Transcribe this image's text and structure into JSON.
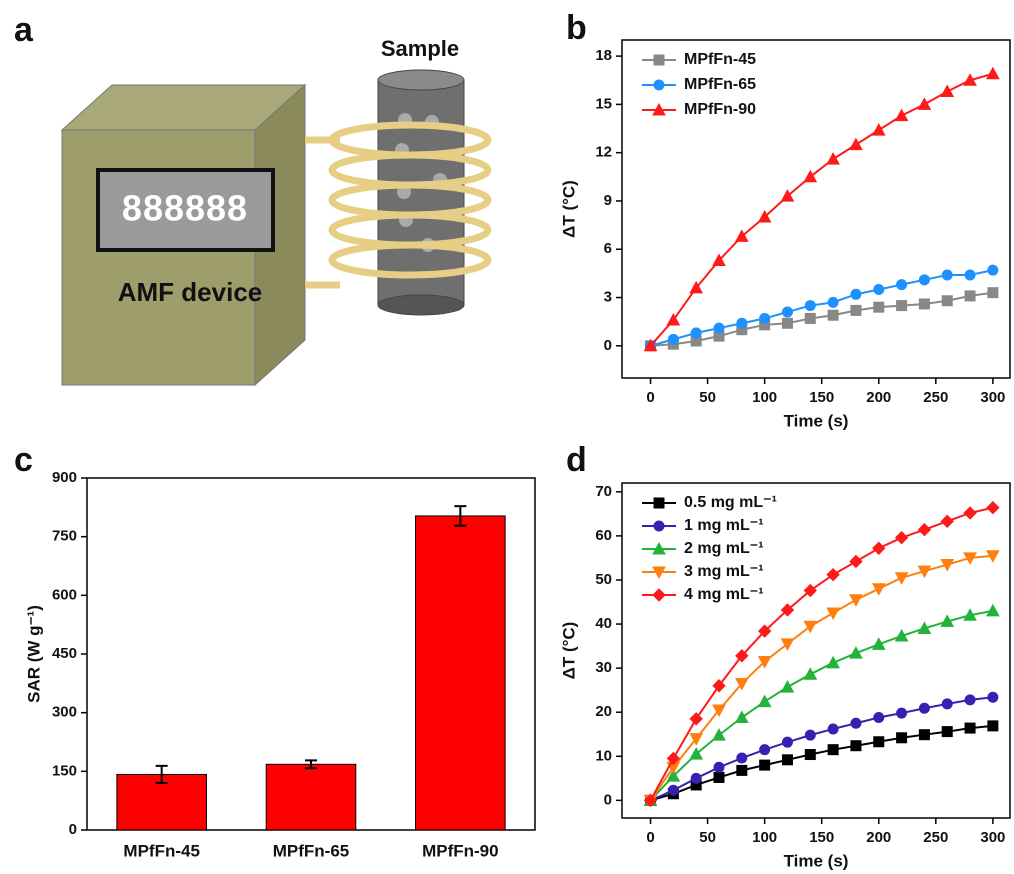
{
  "illustration": {
    "label": "a",
    "device": "AMF device",
    "sample": "Sample",
    "display": "888888"
  },
  "chart_data": [
    {
      "type": "line",
      "label": "b",
      "xlabel": "Time (s)",
      "ylabel": "ΔT (°C)",
      "x": [
        0,
        20,
        40,
        60,
        80,
        100,
        120,
        140,
        160,
        180,
        200,
        220,
        240,
        260,
        280,
        300
      ],
      "series": [
        {
          "name": "MPfFn-45",
          "color": "#888888",
          "marker": "square",
          "values": [
            0,
            0.1,
            0.3,
            0.6,
            1.0,
            1.3,
            1.4,
            1.7,
            1.9,
            2.2,
            2.4,
            2.5,
            2.6,
            2.8,
            3.1,
            3.3
          ]
        },
        {
          "name": "MPfFn-65",
          "color": "#1e90ff",
          "marker": "circle",
          "values": [
            0,
            0.4,
            0.8,
            1.1,
            1.4,
            1.7,
            2.1,
            2.5,
            2.7,
            3.2,
            3.5,
            3.8,
            4.1,
            4.4,
            4.4,
            4.7
          ]
        },
        {
          "name": "MPfFn-90",
          "color": "#ff1a1a",
          "marker": "triangle",
          "values": [
            0,
            1.6,
            3.6,
            5.3,
            6.8,
            8.0,
            9.3,
            10.5,
            11.6,
            12.5,
            13.4,
            14.3,
            15.0,
            15.8,
            16.5,
            16.9
          ]
        }
      ],
      "xlim": [
        -25,
        315
      ],
      "xticks": [
        0,
        50,
        100,
        150,
        200,
        250,
        300
      ],
      "ylim": [
        -2,
        19
      ],
      "yticks": [
        0,
        3,
        6,
        9,
        12,
        15,
        18
      ],
      "legend": "upper left"
    },
    {
      "type": "bar",
      "label": "c",
      "ylabel": "SAR (W g⁻¹)",
      "categories": [
        "MPfFn-45",
        "MPfFn-65",
        "MPfFn-90"
      ],
      "values": [
        142,
        168,
        803
      ],
      "errors": [
        22,
        10,
        25
      ],
      "color": "#ff0000",
      "ylim": [
        0,
        900
      ],
      "yticks": [
        0,
        150,
        300,
        450,
        600,
        750,
        900
      ]
    },
    {
      "type": "line",
      "label": "d",
      "xlabel": "Time (s)",
      "ylabel": "ΔT (°C)",
      "x": [
        0,
        20,
        40,
        60,
        80,
        100,
        120,
        140,
        160,
        180,
        200,
        220,
        240,
        260,
        280,
        300
      ],
      "series": [
        {
          "name": "0.5 mg mL⁻¹",
          "color": "#000000",
          "marker": "square",
          "values": [
            0,
            1.5,
            3.5,
            5.2,
            6.8,
            8,
            9.2,
            10.4,
            11.5,
            12.4,
            13.3,
            14.2,
            14.9,
            15.6,
            16.4,
            16.9
          ]
        },
        {
          "name": "1 mg mL⁻¹",
          "color": "#3a1fb0",
          "marker": "circle",
          "values": [
            0,
            2.3,
            5,
            7.5,
            9.6,
            11.5,
            13.2,
            14.8,
            16.2,
            17.5,
            18.8,
            19.8,
            20.9,
            21.9,
            22.8,
            23.4
          ]
        },
        {
          "name": "2 mg mL⁻¹",
          "color": "#22b33a",
          "marker": "triangle",
          "values": [
            0,
            5.5,
            10.5,
            14.8,
            18.8,
            22.4,
            25.7,
            28.6,
            31.2,
            33.4,
            35.4,
            37.3,
            39,
            40.6,
            42,
            43
          ]
        },
        {
          "name": "3 mg mL⁻¹",
          "color": "#ff7f0e",
          "marker": "down-triangle",
          "values": [
            0,
            7.5,
            14,
            20.5,
            26.5,
            31.5,
            35.5,
            39.5,
            42.5,
            45.5,
            48,
            50.5,
            52,
            53.5,
            55,
            55.5
          ]
        },
        {
          "name": "4 mg mL⁻¹",
          "color": "#ff1a1a",
          "marker": "diamond",
          "values": [
            0,
            9.5,
            18.5,
            26,
            32.8,
            38.4,
            43.2,
            47.6,
            51.2,
            54.2,
            57.2,
            59.6,
            61.4,
            63.3,
            65.2,
            66.4
          ]
        }
      ],
      "xlim": [
        -25,
        315
      ],
      "xticks": [
        0,
        50,
        100,
        150,
        200,
        250,
        300
      ],
      "ylim": [
        -4,
        72
      ],
      "yticks": [
        0,
        10,
        20,
        30,
        40,
        50,
        60,
        70
      ],
      "legend": "upper left"
    }
  ]
}
